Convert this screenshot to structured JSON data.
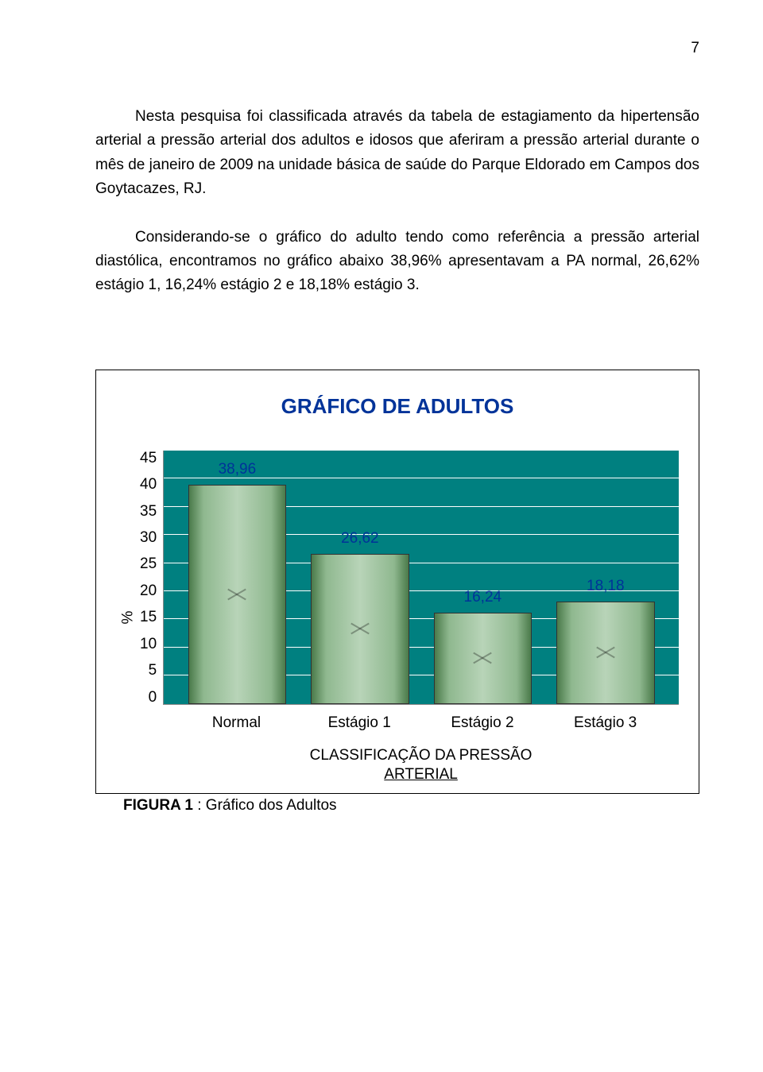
{
  "page_number": "7",
  "paragraph1": "Nesta pesquisa foi classificada através da tabela de estagiamento da hipertensão arterial a pressão arterial dos adultos e idosos que aferiram a pressão arterial durante o mês de janeiro de 2009 na unidade básica de saúde do Parque Eldorado em Campos dos Goytacazes, RJ.",
  "paragraph2": "Considerando-se o gráfico do adulto tendo como referência a pressão arterial diastólica, encontramos no gráfico abaixo 38,96% apresentavam a PA normal, 26,62% estágio 1, 16,24% estágio 2 e 18,18% estágio 3.",
  "chart": {
    "type": "bar",
    "title": "GRÁFICO DE ADULTOS",
    "title_color": "#003399",
    "title_fontsize": 26,
    "y_label": "%",
    "ylim_max": 45,
    "y_ticks": [
      "45",
      "40",
      "35",
      "30",
      "25",
      "20",
      "15",
      "10",
      "5",
      "0"
    ],
    "categories": [
      "Normal",
      "Estágio 1",
      "Estágio 2",
      "Estágio 3"
    ],
    "values": [
      38.96,
      26.62,
      16.24,
      18.18
    ],
    "value_labels": [
      "38,96",
      "26,62",
      "16,24",
      "18,18"
    ],
    "bar_fill": "#8fb88f",
    "plot_background": "#008080",
    "grid_color": "#ffffff",
    "value_label_color": "#003399",
    "x_axis_title_line1": "CLASSIFICAÇÃO DA PRESSÃO",
    "x_axis_title_line2": "ARTERIAL",
    "label_fontsize": 19
  },
  "figure_caption_bold": "FIGURA 1",
  "figure_caption_rest": " : Gráfico dos Adultos"
}
